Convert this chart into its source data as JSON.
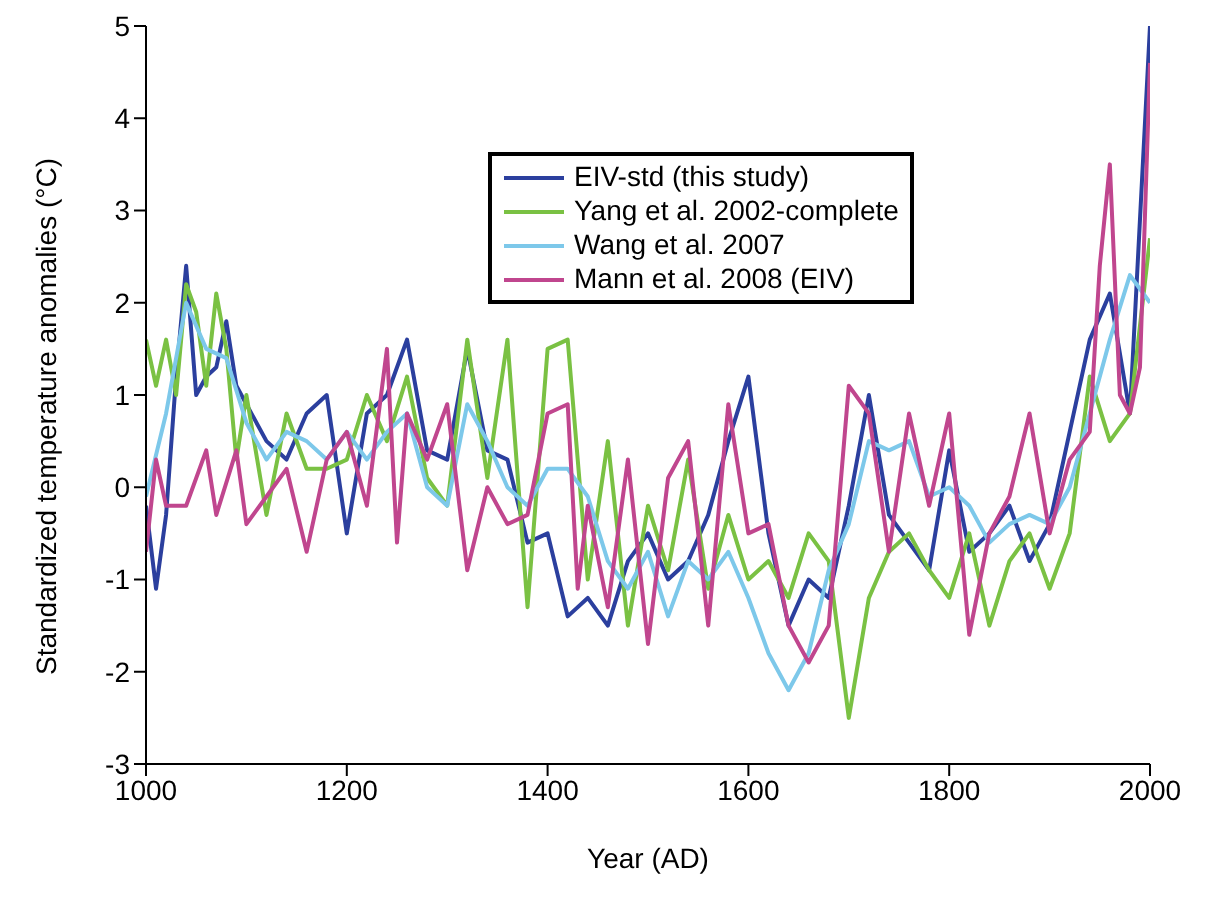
{
  "chart_data": {
    "type": "line",
    "xlabel": "Year (AD)",
    "ylabel": "Standardized temperature anomalies (°C)",
    "xlim": [
      1000,
      2000
    ],
    "xticks": [
      1000,
      1200,
      1400,
      1600,
      1800,
      2000
    ],
    "ylim": [
      -3,
      5
    ],
    "yticks": [
      -3,
      -2,
      -1,
      0,
      1,
      2,
      3,
      4,
      5
    ],
    "legend": "top right",
    "marker": "none",
    "line_style": "solid",
    "series": [
      {
        "name": "EIV-std (this study)",
        "color": "#2b3f9e",
        "x": [
          1000,
          1010,
          1020,
          1030,
          1040,
          1050,
          1060,
          1070,
          1080,
          1090,
          1100,
          1120,
          1140,
          1160,
          1180,
          1200,
          1220,
          1240,
          1260,
          1280,
          1300,
          1320,
          1340,
          1360,
          1380,
          1400,
          1420,
          1440,
          1460,
          1480,
          1500,
          1520,
          1540,
          1560,
          1580,
          1600,
          1620,
          1640,
          1660,
          1680,
          1700,
          1720,
          1740,
          1760,
          1780,
          1800,
          1820,
          1840,
          1860,
          1880,
          1900,
          1920,
          1940,
          1960,
          1980,
          2000
        ],
        "values": [
          -0.2,
          -1.1,
          -0.3,
          1.2,
          2.4,
          1.0,
          1.2,
          1.3,
          1.8,
          1.1,
          0.9,
          0.5,
          0.3,
          0.8,
          1.0,
          -0.5,
          0.8,
          1.0,
          1.6,
          0.4,
          0.3,
          1.5,
          0.4,
          0.3,
          -0.6,
          -0.5,
          -1.4,
          -1.2,
          -1.5,
          -0.8,
          -0.5,
          -1.0,
          -0.8,
          -0.3,
          0.5,
          1.2,
          -0.5,
          -1.5,
          -1.0,
          -1.2,
          -0.2,
          1.0,
          -0.3,
          -0.6,
          -0.9,
          0.4,
          -0.7,
          -0.5,
          -0.2,
          -0.8,
          -0.4,
          0.6,
          1.6,
          2.1,
          0.8,
          5.0
        ]
      },
      {
        "name": "Yang et al. 2002-complete",
        "color": "#7ac143",
        "x": [
          1000,
          1010,
          1020,
          1030,
          1040,
          1050,
          1060,
          1070,
          1080,
          1090,
          1100,
          1120,
          1140,
          1160,
          1180,
          1200,
          1220,
          1240,
          1260,
          1280,
          1300,
          1320,
          1340,
          1360,
          1380,
          1400,
          1420,
          1440,
          1460,
          1480,
          1500,
          1520,
          1540,
          1560,
          1580,
          1600,
          1620,
          1640,
          1660,
          1680,
          1700,
          1720,
          1740,
          1760,
          1780,
          1800,
          1820,
          1840,
          1860,
          1880,
          1900,
          1920,
          1940,
          1960,
          1980,
          2000
        ],
        "values": [
          1.6,
          1.1,
          1.6,
          1.0,
          2.2,
          1.9,
          1.1,
          2.1,
          1.5,
          0.3,
          1.0,
          -0.3,
          0.8,
          0.2,
          0.2,
          0.3,
          1.0,
          0.5,
          1.2,
          0.1,
          -0.2,
          1.6,
          0.1,
          1.6,
          -1.3,
          1.5,
          1.6,
          -1.0,
          0.5,
          -1.5,
          -0.2,
          -0.9,
          0.3,
          -1.1,
          -0.3,
          -1.0,
          -0.8,
          -1.2,
          -0.5,
          -0.8,
          -2.5,
          -1.2,
          -0.7,
          -0.5,
          -0.9,
          -1.2,
          -0.5,
          -1.5,
          -0.8,
          -0.5,
          -1.1,
          -0.5,
          1.2,
          0.5,
          0.8,
          2.7
        ]
      },
      {
        "name": "Wang et al. 2007",
        "color": "#7dc8ea",
        "x": [
          1000,
          1020,
          1040,
          1060,
          1080,
          1100,
          1120,
          1140,
          1160,
          1180,
          1200,
          1220,
          1240,
          1260,
          1280,
          1300,
          1320,
          1340,
          1360,
          1380,
          1400,
          1420,
          1440,
          1460,
          1480,
          1500,
          1520,
          1540,
          1560,
          1580,
          1600,
          1620,
          1640,
          1660,
          1680,
          1700,
          1720,
          1740,
          1760,
          1780,
          1800,
          1820,
          1840,
          1860,
          1880,
          1900,
          1920,
          1940,
          1960,
          1980,
          2000
        ],
        "values": [
          -0.1,
          0.8,
          2.0,
          1.5,
          1.4,
          0.7,
          0.3,
          0.6,
          0.5,
          0.3,
          0.6,
          0.3,
          0.6,
          0.8,
          0.0,
          -0.2,
          0.9,
          0.5,
          0.0,
          -0.2,
          0.2,
          0.2,
          -0.1,
          -0.8,
          -1.1,
          -0.7,
          -1.4,
          -0.8,
          -1.0,
          -0.7,
          -1.2,
          -1.8,
          -2.2,
          -1.8,
          -0.9,
          -0.4,
          0.5,
          0.4,
          0.5,
          -0.1,
          0.0,
          -0.2,
          -0.6,
          -0.4,
          -0.3,
          -0.4,
          0.0,
          0.8,
          1.6,
          2.3,
          2.0
        ]
      },
      {
        "name": "Mann et al. 2008 (EIV)",
        "color": "#c0468e",
        "x": [
          1000,
          1010,
          1020,
          1040,
          1060,
          1070,
          1090,
          1100,
          1120,
          1140,
          1160,
          1180,
          1200,
          1220,
          1240,
          1250,
          1260,
          1280,
          1300,
          1320,
          1340,
          1360,
          1380,
          1400,
          1420,
          1430,
          1440,
          1460,
          1480,
          1500,
          1520,
          1540,
          1560,
          1580,
          1600,
          1620,
          1640,
          1660,
          1680,
          1700,
          1720,
          1740,
          1760,
          1780,
          1800,
          1820,
          1840,
          1860,
          1880,
          1900,
          1920,
          1940,
          1950,
          1960,
          1970,
          1980,
          1990,
          2000
        ],
        "values": [
          -0.7,
          0.3,
          -0.2,
          -0.2,
          0.4,
          -0.3,
          0.4,
          -0.4,
          -0.1,
          0.2,
          -0.7,
          0.3,
          0.6,
          -0.2,
          1.5,
          -0.6,
          0.8,
          0.3,
          0.9,
          -0.9,
          0.0,
          -0.4,
          -0.3,
          0.8,
          0.9,
          -1.1,
          -0.2,
          -1.3,
          0.3,
          -1.7,
          0.1,
          0.5,
          -1.5,
          0.9,
          -0.5,
          -0.4,
          -1.5,
          -1.9,
          -1.5,
          1.1,
          0.8,
          -0.7,
          0.8,
          -0.2,
          0.8,
          -1.6,
          -0.5,
          -0.1,
          0.8,
          -0.5,
          0.3,
          0.6,
          2.4,
          3.5,
          1.0,
          0.8,
          1.3,
          4.6
        ]
      }
    ]
  }
}
